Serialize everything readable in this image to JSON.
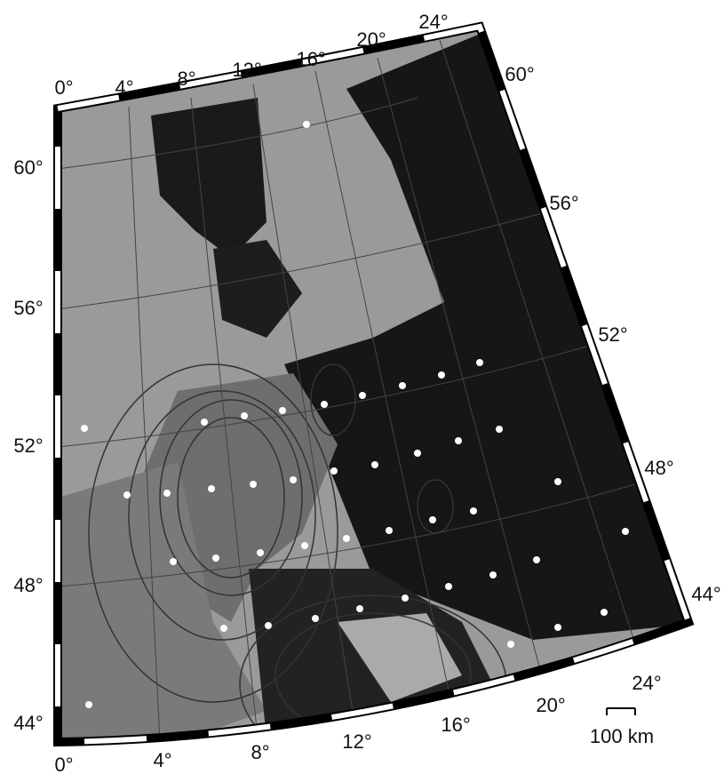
{
  "map": {
    "top_labels": [
      "0°",
      "4°",
      "8°",
      "12°",
      "16°",
      "20°",
      "24°"
    ],
    "right_labels": [
      "60°",
      "56°",
      "52°",
      "48°",
      "44°"
    ],
    "left_labels": [
      "60°",
      "56°",
      "52°",
      "48°",
      "44°"
    ],
    "bottom_labels": [
      "0°",
      "4°",
      "8°",
      "12°",
      "16°",
      "20°",
      "24°"
    ],
    "scale_bar": "100 km"
  }
}
